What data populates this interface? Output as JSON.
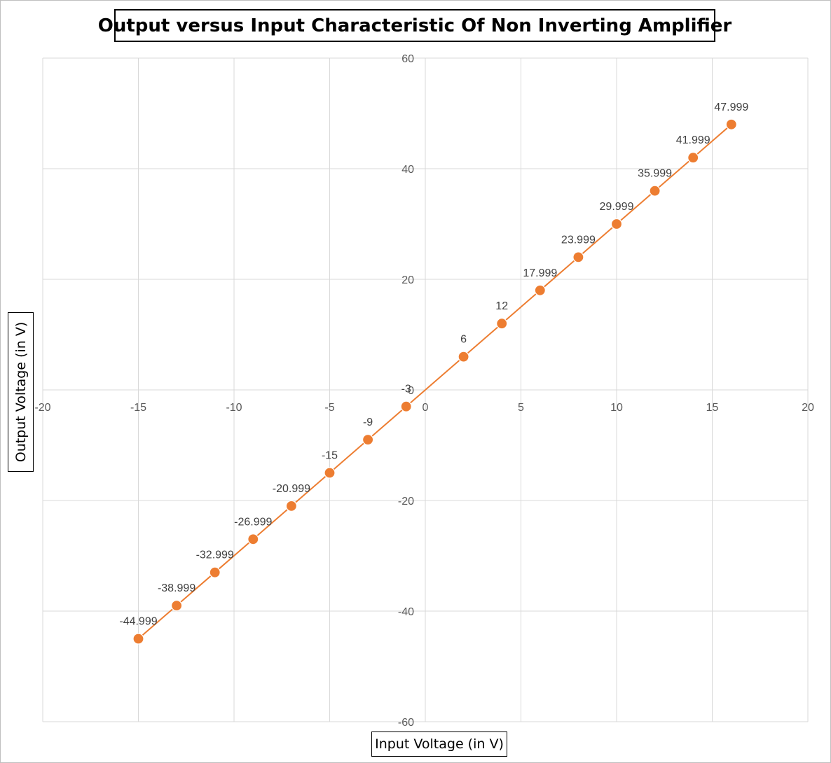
{
  "chart_data": {
    "type": "scatter",
    "title": "Output versus Input Characteristic Of Non Inverting Amplifier",
    "xlabel": "Input Voltage (in V)",
    "ylabel": "Output Voltage (in V)",
    "xlim": [
      -20,
      20
    ],
    "ylim": [
      -60,
      60
    ],
    "x_ticks": [
      -20,
      -15,
      -10,
      -5,
      0,
      5,
      10,
      15,
      20
    ],
    "y_ticks": [
      -60,
      -40,
      -20,
      0,
      20,
      40,
      60
    ],
    "grid": true,
    "legend": "none",
    "series": [
      {
        "color": "#ED7D31",
        "x": [
          -15,
          -13,
          -11,
          -9,
          -7,
          -5,
          -3,
          -1,
          2,
          4,
          6,
          8,
          10,
          12,
          14,
          16
        ],
        "y": [
          -44.999,
          -38.999,
          -32.999,
          -26.999,
          -20.999,
          -15,
          -9,
          -3,
          6,
          12,
          17.999,
          23.999,
          29.999,
          35.999,
          41.999,
          47.999
        ],
        "labels": [
          "-44.999",
          "-38.999",
          "-32.999",
          "-26.999",
          "-20.999",
          "-15",
          "-9",
          "-3",
          "6",
          "12",
          "17.999",
          "23.999",
          "29.999",
          "35.999",
          "41.999",
          "47.999"
        ]
      }
    ]
  },
  "colors": {
    "grid": "#d9d9d9",
    "series": "#ED7D31",
    "axis": "#d9d9d9"
  }
}
